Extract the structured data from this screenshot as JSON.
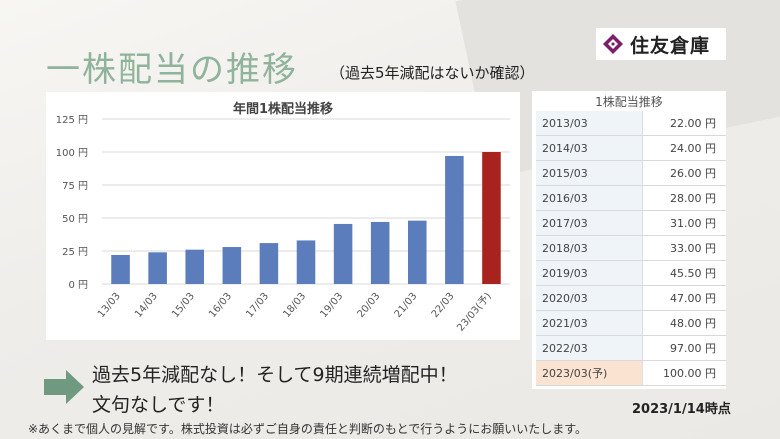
{
  "logo": {
    "text": "住友倉庫"
  },
  "header": {
    "title": "一株配当の推移",
    "subtitle": "（過去5年減配はないか確認）"
  },
  "chart_data": {
    "type": "bar",
    "title": "年間1株配当推移",
    "categories": [
      "13/03",
      "14/03",
      "15/03",
      "16/03",
      "17/03",
      "18/03",
      "19/03",
      "20/03",
      "21/03",
      "22/03",
      "23/03(予)"
    ],
    "values": [
      22,
      24,
      26,
      28,
      31,
      33,
      45.5,
      47,
      48,
      97,
      100
    ],
    "yticks": [
      "0 円",
      "25 円",
      "50 円",
      "75 円",
      "100 円",
      "125 円"
    ],
    "ylim": [
      0,
      125
    ],
    "colors": {
      "actual": "#5b7dbb",
      "forecast": "#a8231d"
    }
  },
  "table": {
    "title": "1株配当推移",
    "rows": [
      {
        "year": "2013/03",
        "value": "22.00 円"
      },
      {
        "year": "2014/03",
        "value": "24.00 円"
      },
      {
        "year": "2015/03",
        "value": "26.00 円"
      },
      {
        "year": "2016/03",
        "value": "28.00 円"
      },
      {
        "year": "2017/03",
        "value": "31.00 円"
      },
      {
        "year": "2018/03",
        "value": "33.00 円"
      },
      {
        "year": "2019/03",
        "value": "45.50 円"
      },
      {
        "year": "2020/03",
        "value": "47.00 円"
      },
      {
        "year": "2021/03",
        "value": "48.00 円"
      },
      {
        "year": "2022/03",
        "value": "97.00 円"
      },
      {
        "year": "2023/03(予)",
        "value": "100.00 円"
      }
    ]
  },
  "message": {
    "line1": "過去5年減配なし！そして9期連続増配中！",
    "line2": "文句なしです！"
  },
  "as_of": "2023/1/14時点",
  "disclaimer": "※あくまで個人の見解です。株式投資は必ずご自身の責任と判断のもとで行うようにお願いいたします。"
}
